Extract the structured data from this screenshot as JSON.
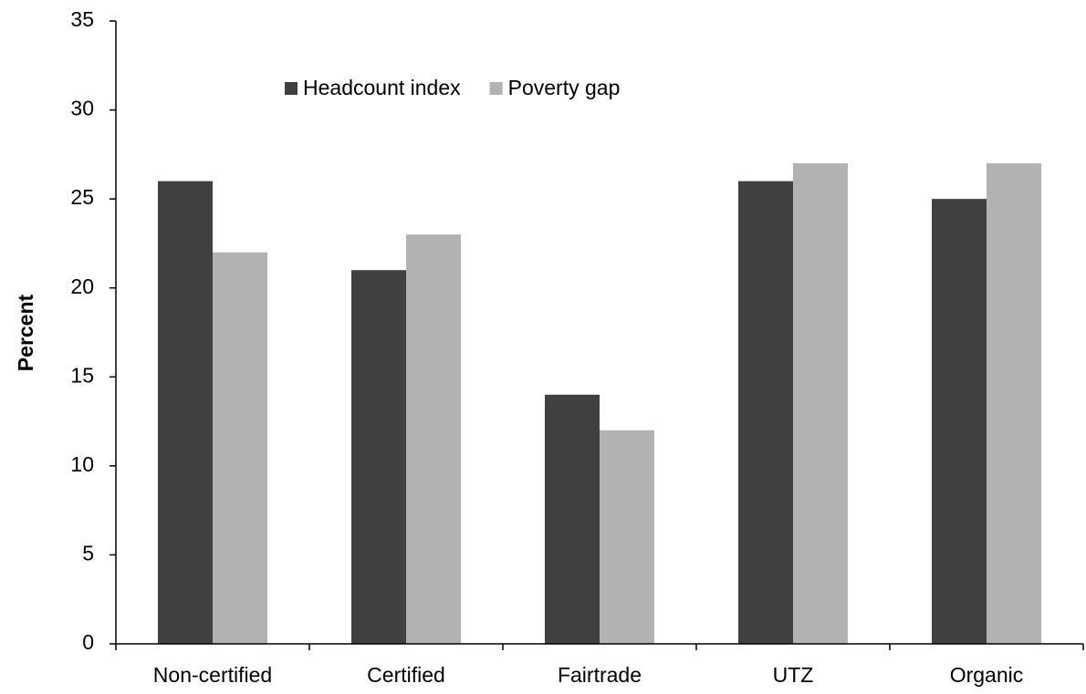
{
  "chart_data": {
    "type": "bar",
    "y_label": "Percent",
    "categories": [
      "Non-certified",
      "Certified",
      "Fairtrade",
      "UTZ",
      "Organic"
    ],
    "series": [
      {
        "name": "Headcount index",
        "color": "#404040",
        "values": [
          26,
          21,
          14,
          26,
          25
        ]
      },
      {
        "name": "Poverty gap",
        "color": "#b2b2b2",
        "values": [
          22,
          23,
          12,
          27,
          27
        ]
      }
    ],
    "ylim": [
      0,
      35
    ],
    "yticks": [
      0,
      5,
      10,
      15,
      20,
      25,
      30,
      35
    ],
    "grid": false,
    "legend": "top"
  }
}
